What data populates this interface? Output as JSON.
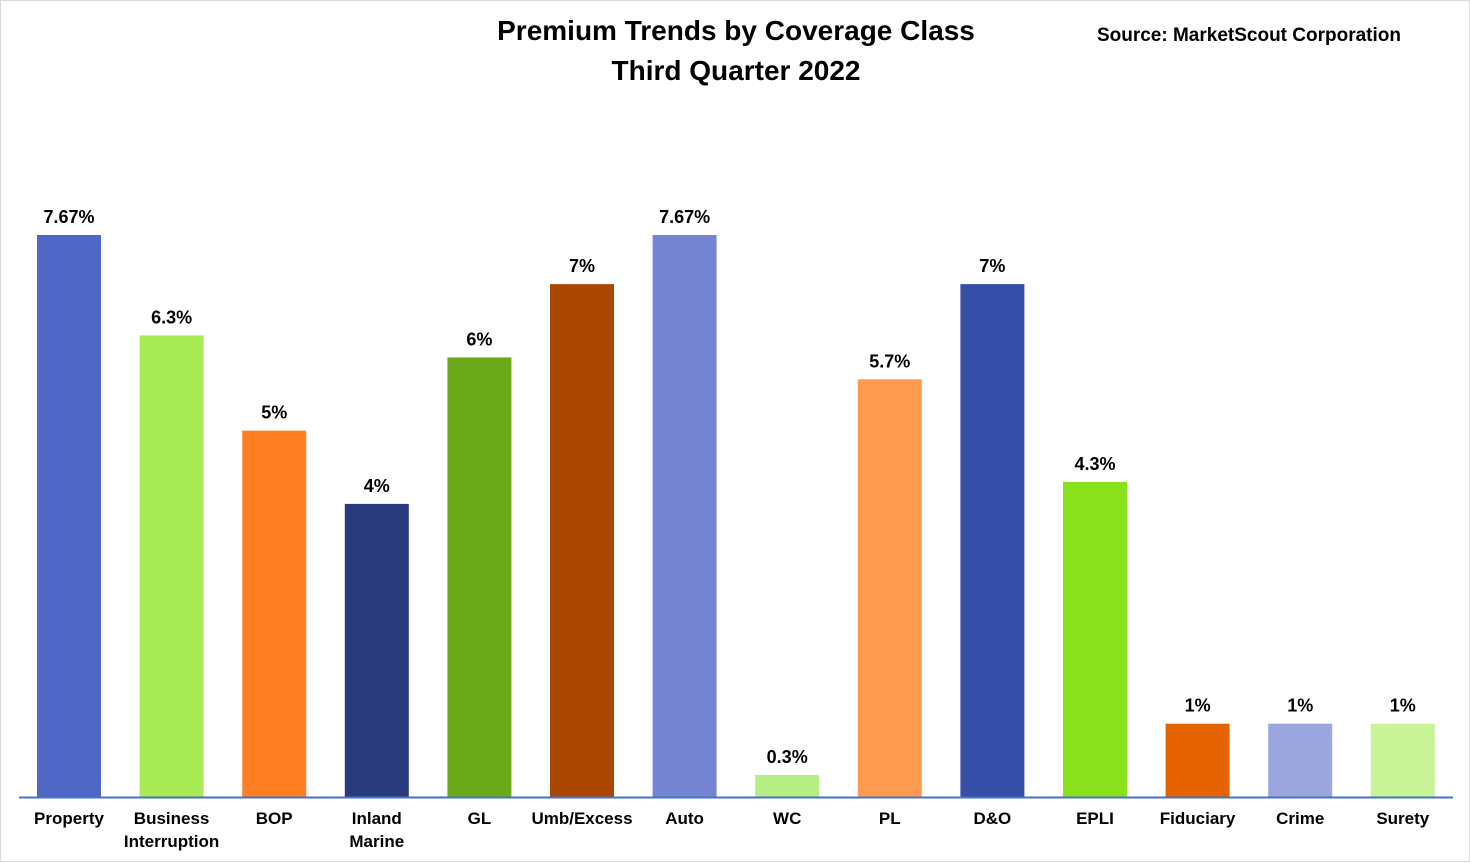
{
  "chart_data": {
    "type": "bar",
    "title": "Premium Trends by Coverage Class",
    "subtitle": "Third Quarter 2022",
    "source": "Source: MarketScout  Corporation",
    "categories": [
      [
        "Property"
      ],
      [
        "Business",
        "Interruption"
      ],
      [
        "BOP"
      ],
      [
        "Inland",
        "Marine"
      ],
      [
        "GL"
      ],
      [
        "Umb/Excess"
      ],
      [
        "Auto"
      ],
      [
        "WC"
      ],
      [
        "PL"
      ],
      [
        "D&O"
      ],
      [
        "EPLI"
      ],
      [
        "Fiduciary"
      ],
      [
        "Crime"
      ],
      [
        "Surety"
      ]
    ],
    "values": [
      7.67,
      6.3,
      5,
      4,
      6,
      7,
      7.67,
      0.3,
      5.7,
      7,
      4.3,
      1,
      1,
      1
    ],
    "value_labels": [
      "7.67%",
      "6.3%",
      "5%",
      "4%",
      "6%",
      "7%",
      "7.67%",
      "0.3%",
      "5.7%",
      "7%",
      "4.3%",
      "1%",
      "1%",
      "1%"
    ],
    "colors": [
      "#4F67C7",
      "#A9EA57",
      "#FF7F22",
      "#283A7C",
      "#6AA917",
      "#AA4700",
      "#7484D3",
      "#B5EE83",
      "#FF9A4F",
      "#354EA8",
      "#8BE01C",
      "#E56300",
      "#9BA6DE",
      "#C8F397"
    ],
    "xlabel": "",
    "ylabel": "",
    "ylim": [
      0,
      7.67
    ],
    "grid": false,
    "legend": "none",
    "axis_color": "#4472C4"
  }
}
